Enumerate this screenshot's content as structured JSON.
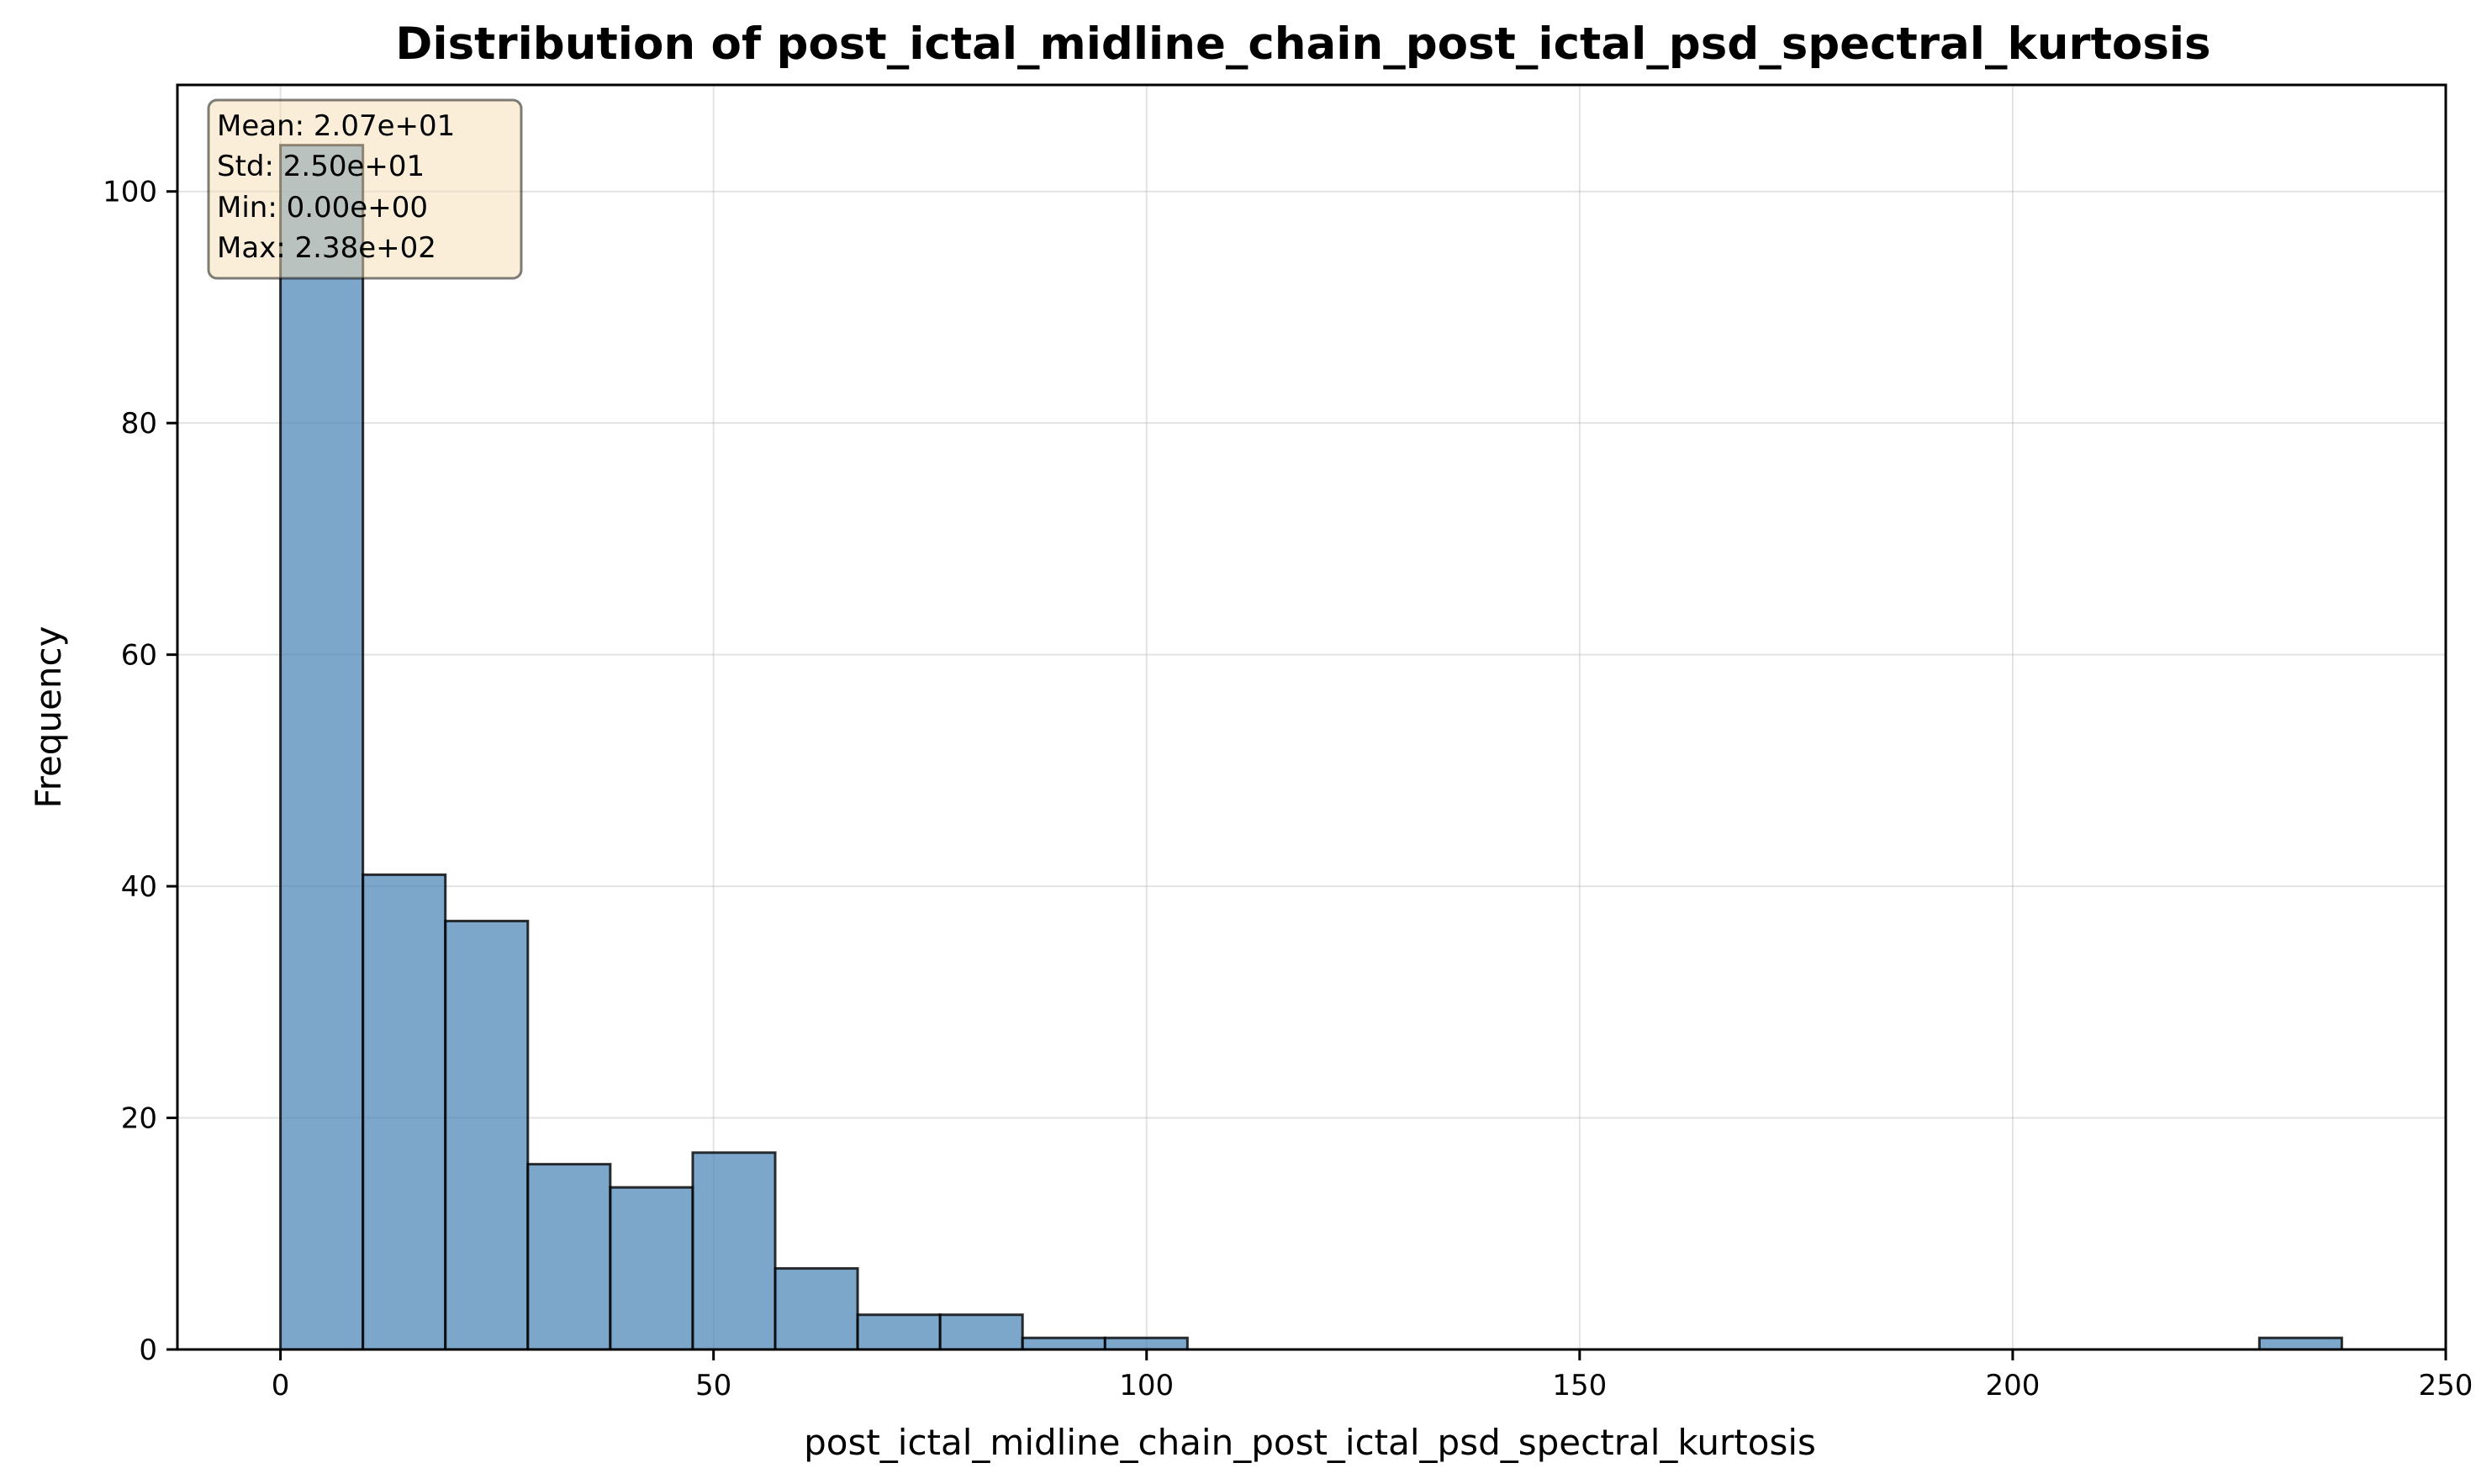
{
  "chart_data": {
    "type": "bar",
    "title": "Distribution of post_ictal_midline_chain_post_ictal_psd_spectral_kurtosis",
    "xlabel": "post_ictal_midline_chain_post_ictal_psd_spectral_kurtosis",
    "ylabel": "Frequency",
    "xlim": [
      -11.9,
      250
    ],
    "ylim": [
      0,
      109.2
    ],
    "xticks": [
      0,
      50,
      100,
      150,
      200,
      250
    ],
    "yticks": [
      0,
      20,
      40,
      60,
      80,
      100
    ],
    "grid": true,
    "bin_edges": [
      0,
      9.52,
      19.04,
      28.56,
      38.08,
      47.6,
      57.12,
      66.64,
      76.16,
      85.68,
      95.2,
      104.72,
      114.24,
      123.76,
      133.28,
      142.8,
      152.32,
      161.84,
      171.36,
      180.88,
      190.4,
      199.92,
      209.44,
      218.96,
      228.48,
      238.0
    ],
    "values": [
      104,
      41,
      37,
      16,
      14,
      17,
      7,
      3,
      3,
      1,
      1,
      0,
      0,
      0,
      0,
      0,
      0,
      0,
      0,
      0,
      0,
      0,
      0,
      0,
      1
    ],
    "stats": {
      "mean": "Mean: 2.07e+01",
      "std": "Std: 2.50e+01",
      "min": "Min: 0.00e+00",
      "max": "Max: 2.38e+02"
    },
    "colors": {
      "bar_fill": "#4682b4",
      "stats_box_fill": "#f5deb3"
    }
  }
}
